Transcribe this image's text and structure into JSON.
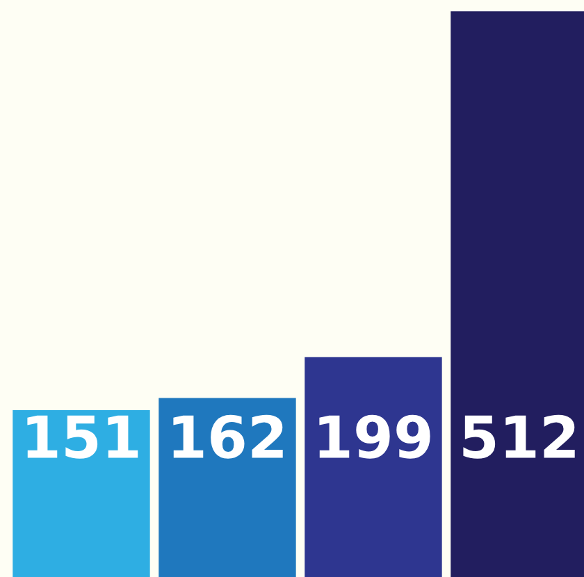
{
  "chart_data": {
    "type": "bar",
    "categories": [
      null,
      null,
      null,
      null
    ],
    "values": [
      151,
      162,
      199,
      512
    ],
    "colors": [
      "#2eaee3",
      "#1f78be",
      "#2e3690",
      "#221e5f"
    ],
    "data_labels": true,
    "grid": false,
    "legend": false
  }
}
